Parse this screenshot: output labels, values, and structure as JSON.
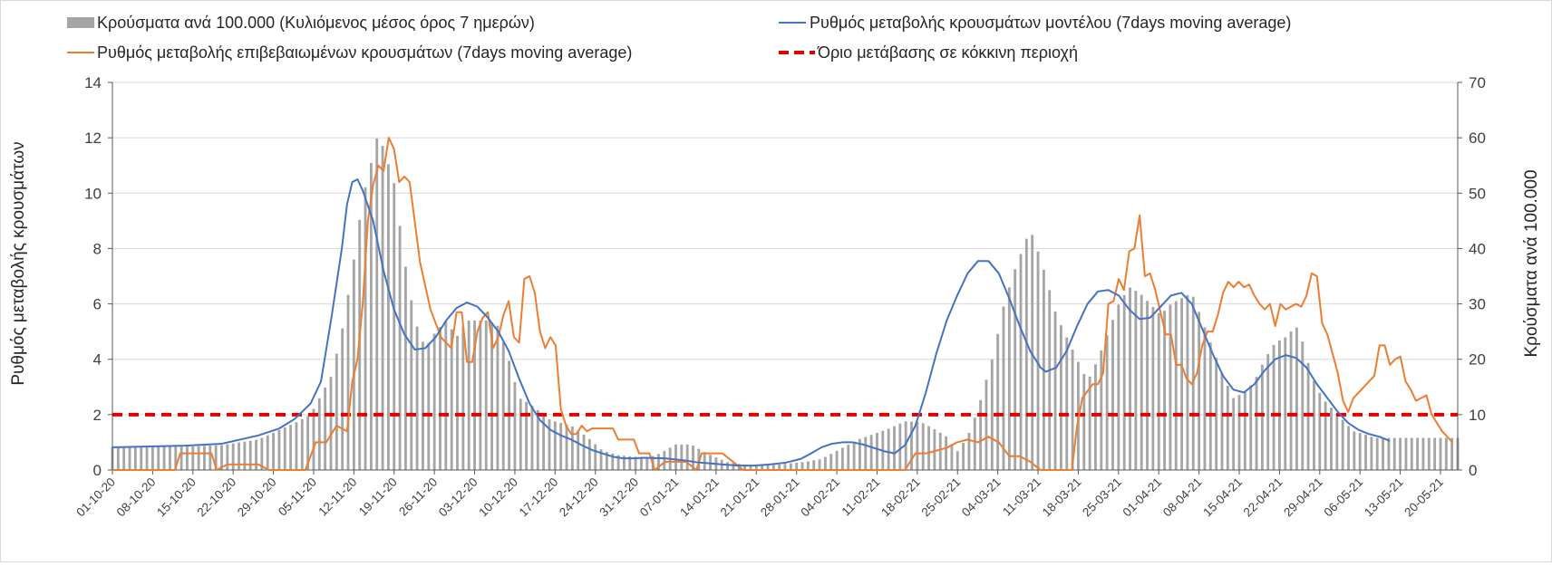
{
  "chart_data": {
    "type": "bar+line",
    "title": "",
    "legend": {
      "placement": "top",
      "entries": [
        {
          "key": "bars",
          "label": "Κρούσματα ανά 100.000 (Κυλιόμενος μέσος όρος 7 ημερών)",
          "color": "#a5a5a5"
        },
        {
          "key": "model",
          "label": "Ρυθμός μεταβολής κρουσμάτων μοντέλου (7days moving average)",
          "color": "#4472c4"
        },
        {
          "key": "confirmed",
          "label": "Ρυθμός μεταβολής επιβεβαιωμένων κρουσμάτων (7days moving average)",
          "color": "#ed7d31"
        },
        {
          "key": "threshold",
          "label": "Όριο μετάβασης σε κόκκινη περιοχή",
          "color": "#e00000"
        }
      ]
    },
    "ylabel_left": "Ρυθμός μεταβολής κρουσμάτων",
    "ylabel_right": "Κρούσματα ανά 100.000",
    "ylim_left": [
      0,
      14
    ],
    "ylim_right": [
      0,
      70
    ],
    "yticks_left": [
      "0",
      "2",
      "4",
      "6",
      "8",
      "10",
      "12",
      "14"
    ],
    "yticks_right": [
      "0",
      "10",
      "20",
      "30",
      "40",
      "50",
      "60",
      "70"
    ],
    "grid": true,
    "x_tick_labels": [
      "01-10-20",
      "08-10-20",
      "15-10-20",
      "22-10-20",
      "29-10-20",
      "05-11-20",
      "12-11-20",
      "19-11-20",
      "26-11-20",
      "03-12-20",
      "10-12-20",
      "17-12-20",
      "24-12-20",
      "31-12-20",
      "07-01-21",
      "14-01-21",
      "21-01-21",
      "28-01-21",
      "04-02-21",
      "11-02-21",
      "18-02-21",
      "25-02-21",
      "04-03-21",
      "11-03-21",
      "18-03-21",
      "25-03-21",
      "01-04-21",
      "08-04-21",
      "15-04-21",
      "22-04-21",
      "29-04-21",
      "06-05-21",
      "13-05-21",
      "20-05-21"
    ],
    "x_start": "01-10-20",
    "x_end": "23-05-21",
    "threshold_value": 2,
    "bar_keypoints": [
      [
        0,
        4.2
      ],
      [
        14,
        4.2
      ],
      [
        21,
        4.5
      ],
      [
        28,
        5.5
      ],
      [
        35,
        8.5
      ],
      [
        38,
        10
      ],
      [
        42,
        17
      ],
      [
        44,
        25
      ],
      [
        46,
        36
      ],
      [
        48,
        49
      ],
      [
        50,
        57
      ],
      [
        51,
        61
      ],
      [
        52,
        58
      ],
      [
        54,
        52
      ],
      [
        56,
        38
      ],
      [
        58,
        27
      ],
      [
        60,
        22
      ],
      [
        62,
        25
      ],
      [
        64,
        27
      ],
      [
        66,
        24
      ],
      [
        68,
        27
      ],
      [
        70,
        27
      ],
      [
        72,
        27
      ],
      [
        74,
        26
      ],
      [
        76,
        20
      ],
      [
        78,
        13
      ],
      [
        80,
        12
      ],
      [
        84,
        9
      ],
      [
        88,
        8
      ],
      [
        91,
        6
      ],
      [
        94,
        3.5
      ],
      [
        97,
        2.7
      ],
      [
        100,
        2.4
      ],
      [
        103,
        2.3
      ],
      [
        105,
        3
      ],
      [
        108,
        4.6
      ],
      [
        111,
        4.6
      ],
      [
        114,
        3
      ],
      [
        118,
        1.4
      ],
      [
        121,
        1
      ],
      [
        125,
        0.8
      ],
      [
        127,
        0.9
      ],
      [
        130,
        1.2
      ],
      [
        133,
        1.5
      ],
      [
        136,
        2
      ],
      [
        140,
        4
      ],
      [
        143,
        5.5
      ],
      [
        146,
        6.5
      ],
      [
        149,
        7.5
      ],
      [
        152,
        8.8
      ],
      [
        155,
        8.7
      ],
      [
        158,
        7.2
      ],
      [
        160,
        6
      ],
      [
        162,
        3.3
      ],
      [
        164,
        6
      ],
      [
        166,
        11
      ],
      [
        169,
        21
      ],
      [
        171,
        30
      ],
      [
        173,
        36
      ],
      [
        175,
        41
      ],
      [
        176,
        43.5
      ],
      [
        177,
        41
      ],
      [
        179,
        35
      ],
      [
        181,
        28
      ],
      [
        183,
        24
      ],
      [
        185,
        20
      ],
      [
        187,
        16
      ],
      [
        189,
        20
      ],
      [
        191,
        25
      ],
      [
        193,
        30
      ],
      [
        195,
        33
      ],
      [
        197,
        32
      ],
      [
        199,
        30
      ],
      [
        201,
        28
      ],
      [
        203,
        30
      ],
      [
        205,
        31
      ],
      [
        207,
        32
      ],
      [
        209,
        27
      ],
      [
        211,
        22
      ],
      [
        213,
        17
      ],
      [
        215,
        13
      ],
      [
        217,
        14
      ],
      [
        219,
        16
      ],
      [
        221,
        20
      ],
      [
        223,
        23
      ],
      [
        225,
        24
      ],
      [
        227,
        26
      ],
      [
        228,
        24
      ],
      [
        230,
        17
      ],
      [
        232,
        13
      ],
      [
        234,
        11
      ],
      [
        236,
        9
      ],
      [
        238,
        7
      ],
      [
        240,
        6.5
      ],
      [
        242,
        5.8
      ],
      [
        234,
        11
      ]
    ],
    "model_keypoints": [
      [
        0,
        0.82
      ],
      [
        7,
        0.85
      ],
      [
        14,
        0.88
      ],
      [
        21,
        0.95
      ],
      [
        28,
        1.25
      ],
      [
        32,
        1.5
      ],
      [
        35,
        1.85
      ],
      [
        38,
        2.4
      ],
      [
        40,
        3.2
      ],
      [
        42,
        5.5
      ],
      [
        44,
        8
      ],
      [
        45,
        9.6
      ],
      [
        46,
        10.4
      ],
      [
        47,
        10.5
      ],
      [
        48,
        10.1
      ],
      [
        50,
        9
      ],
      [
        52,
        7.2
      ],
      [
        54,
        5.8
      ],
      [
        56,
        4.9
      ],
      [
        58,
        4.35
      ],
      [
        60,
        4.4
      ],
      [
        62,
        4.8
      ],
      [
        64,
        5.4
      ],
      [
        66,
        5.85
      ],
      [
        68,
        6.05
      ],
      [
        70,
        5.9
      ],
      [
        72,
        5.5
      ],
      [
        74,
        5
      ],
      [
        76,
        4.3
      ],
      [
        78,
        3.3
      ],
      [
        80,
        2.4
      ],
      [
        82,
        1.8
      ],
      [
        84,
        1.45
      ],
      [
        86,
        1.25
      ],
      [
        88,
        1.1
      ],
      [
        90,
        0.9
      ],
      [
        92,
        0.72
      ],
      [
        94,
        0.6
      ],
      [
        96,
        0.48
      ],
      [
        98,
        0.42
      ],
      [
        100,
        0.42
      ],
      [
        102,
        0.44
      ],
      [
        104,
        0.43
      ],
      [
        106,
        0.42
      ],
      [
        108,
        0.38
      ],
      [
        110,
        0.34
      ],
      [
        112,
        0.28
      ],
      [
        114,
        0.25
      ],
      [
        117,
        0.2
      ],
      [
        120,
        0.16
      ],
      [
        123,
        0.16
      ],
      [
        126,
        0.2
      ],
      [
        129,
        0.26
      ],
      [
        132,
        0.4
      ],
      [
        134,
        0.6
      ],
      [
        136,
        0.82
      ],
      [
        138,
        0.95
      ],
      [
        140,
        1.0
      ],
      [
        142,
        1.0
      ],
      [
        144,
        0.92
      ],
      [
        146,
        0.8
      ],
      [
        148,
        0.68
      ],
      [
        150,
        0.6
      ],
      [
        152,
        0.9
      ],
      [
        154,
        1.6
      ],
      [
        156,
        2.8
      ],
      [
        158,
        4.2
      ],
      [
        160,
        5.4
      ],
      [
        162,
        6.3
      ],
      [
        164,
        7.1
      ],
      [
        166,
        7.55
      ],
      [
        168,
        7.55
      ],
      [
        170,
        7.1
      ],
      [
        172,
        6.2
      ],
      [
        174,
        5.2
      ],
      [
        176,
        4.3
      ],
      [
        178,
        3.7
      ],
      [
        179,
        3.55
      ],
      [
        181,
        3.7
      ],
      [
        183,
        4.3
      ],
      [
        185,
        5.2
      ],
      [
        187,
        6
      ],
      [
        189,
        6.45
      ],
      [
        191,
        6.5
      ],
      [
        193,
        6.3
      ],
      [
        195,
        5.8
      ],
      [
        197,
        5.45
      ],
      [
        199,
        5.5
      ],
      [
        201,
        5.9
      ],
      [
        203,
        6.3
      ],
      [
        205,
        6.4
      ],
      [
        207,
        6.0
      ],
      [
        209,
        5.1
      ],
      [
        211,
        4.2
      ],
      [
        213,
        3.4
      ],
      [
        215,
        2.9
      ],
      [
        217,
        2.8
      ],
      [
        219,
        3.1
      ],
      [
        221,
        3.6
      ],
      [
        223,
        4.0
      ],
      [
        225,
        4.15
      ],
      [
        227,
        4.05
      ],
      [
        229,
        3.7
      ],
      [
        231,
        3.1
      ],
      [
        233,
        2.6
      ],
      [
        235,
        2.1
      ],
      [
        237,
        1.7
      ],
      [
        239,
        1.45
      ],
      [
        241,
        1.3
      ],
      [
        243,
        1.2
      ],
      [
        245,
        1.05
      ]
    ],
    "confirmed_keypoints": [
      [
        0,
        0
      ],
      [
        8,
        0
      ],
      [
        12,
        0
      ],
      [
        13,
        0.6
      ],
      [
        19,
        0.6
      ],
      [
        20,
        0
      ],
      [
        22,
        0.2
      ],
      [
        28,
        0.2
      ],
      [
        30,
        0
      ],
      [
        35,
        0
      ],
      [
        37,
        0
      ],
      [
        39,
        1.0
      ],
      [
        41,
        1.0
      ],
      [
        43,
        1.6
      ],
      [
        45,
        1.4
      ],
      [
        46,
        3.2
      ],
      [
        47,
        4
      ],
      [
        48,
        6
      ],
      [
        49,
        9
      ],
      [
        50,
        10.3
      ],
      [
        51,
        11
      ],
      [
        52,
        10.8
      ],
      [
        53,
        12
      ],
      [
        54,
        11.6
      ],
      [
        55,
        10.4
      ],
      [
        56,
        10.6
      ],
      [
        57,
        10.4
      ],
      [
        59,
        7.5
      ],
      [
        61,
        5.8
      ],
      [
        63,
        4.8
      ],
      [
        65,
        4.4
      ],
      [
        66,
        5.7
      ],
      [
        67,
        5.7
      ],
      [
        68,
        3.9
      ],
      [
        69,
        3.9
      ],
      [
        70,
        5.0
      ],
      [
        71,
        5.5
      ],
      [
        72,
        5.7
      ],
      [
        73,
        4.4
      ],
      [
        74,
        4.8
      ],
      [
        75,
        5.6
      ],
      [
        76,
        6.1
      ],
      [
        77,
        4.8
      ],
      [
        78,
        4.6
      ],
      [
        79,
        6.9
      ],
      [
        80,
        7.0
      ],
      [
        81,
        6.4
      ],
      [
        82,
        5.0
      ],
      [
        83,
        4.4
      ],
      [
        84,
        4.8
      ],
      [
        85,
        4.5
      ],
      [
        86,
        2.2
      ],
      [
        87,
        1.6
      ],
      [
        88,
        1.3
      ],
      [
        89,
        1.3
      ],
      [
        90,
        1.6
      ],
      [
        91,
        1.4
      ],
      [
        92,
        1.5
      ],
      [
        96,
        1.5
      ],
      [
        97,
        1.1
      ],
      [
        100,
        1.1
      ],
      [
        101,
        0.6
      ],
      [
        103,
        0.6
      ],
      [
        104,
        0
      ],
      [
        106,
        0.3
      ],
      [
        108,
        0.3
      ],
      [
        110,
        0.3
      ],
      [
        112,
        0
      ],
      [
        113,
        0.6
      ],
      [
        117,
        0.6
      ],
      [
        121,
        0
      ],
      [
        150,
        0
      ],
      [
        152,
        0
      ],
      [
        154,
        0.6
      ],
      [
        156,
        0.6
      ],
      [
        158,
        0.7
      ],
      [
        160,
        0.8
      ],
      [
        162,
        1.0
      ],
      [
        164,
        1.1
      ],
      [
        166,
        1.0
      ],
      [
        168,
        1.2
      ],
      [
        170,
        1.0
      ],
      [
        172,
        0.5
      ],
      [
        174,
        0.5
      ],
      [
        176,
        0.3
      ],
      [
        178,
        0
      ],
      [
        180,
        0
      ],
      [
        182,
        0
      ],
      [
        184,
        0
      ],
      [
        185,
        1.6
      ],
      [
        186,
        2.6
      ],
      [
        188,
        3.1
      ],
      [
        189,
        3.1
      ],
      [
        190,
        3.5
      ],
      [
        191,
        6.0
      ],
      [
        192,
        6.1
      ],
      [
        193,
        6.9
      ],
      [
        194,
        6.5
      ],
      [
        195,
        7.9
      ],
      [
        196,
        8.0
      ],
      [
        197,
        9.2
      ],
      [
        198,
        7.0
      ],
      [
        199,
        7.1
      ],
      [
        200,
        6.5
      ],
      [
        201,
        5.7
      ],
      [
        202,
        4.9
      ],
      [
        203,
        4.9
      ],
      [
        204,
        3.8
      ],
      [
        205,
        3.8
      ],
      [
        206,
        3.3
      ],
      [
        207,
        3.1
      ],
      [
        208,
        3.5
      ],
      [
        209,
        4.5
      ],
      [
        210,
        5.0
      ],
      [
        211,
        5.0
      ],
      [
        212,
        5.6
      ],
      [
        213,
        6.4
      ],
      [
        214,
        6.8
      ],
      [
        215,
        6.6
      ],
      [
        216,
        6.8
      ],
      [
        217,
        6.6
      ],
      [
        218,
        6.7
      ],
      [
        219,
        6.3
      ],
      [
        220,
        6.0
      ],
      [
        221,
        5.8
      ],
      [
        222,
        6.0
      ],
      [
        223,
        5.2
      ],
      [
        224,
        6.0
      ],
      [
        225,
        5.8
      ],
      [
        226,
        5.9
      ],
      [
        227,
        6.0
      ],
      [
        228,
        5.9
      ],
      [
        229,
        6.3
      ]
    ],
    "confirmed_tail_keypoints": [
      [
        229,
        6.3
      ],
      [
        230,
        7.1
      ],
      [
        231,
        7.0
      ],
      [
        232,
        5.3
      ],
      [
        233,
        4.9
      ],
      [
        234,
        4.2
      ],
      [
        235,
        3.5
      ],
      [
        236,
        2.5
      ],
      [
        237,
        2.1
      ],
      [
        238,
        2.6
      ],
      [
        239,
        2.8
      ],
      [
        240,
        3.0
      ],
      [
        241,
        3.2
      ],
      [
        242,
        3.4
      ],
      [
        243,
        4.5
      ],
      [
        244,
        4.5
      ],
      [
        245,
        3.8
      ],
      [
        246,
        4.0
      ],
      [
        247,
        4.1
      ],
      [
        248,
        3.2
      ],
      [
        249,
        2.9
      ],
      [
        250,
        2.5
      ],
      [
        251,
        2.6
      ],
      [
        252,
        2.7
      ],
      [
        253,
        2.0
      ],
      [
        254,
        1.7
      ],
      [
        255,
        1.4
      ],
      [
        256,
        1.2
      ],
      [
        257,
        1.0
      ]
    ]
  }
}
